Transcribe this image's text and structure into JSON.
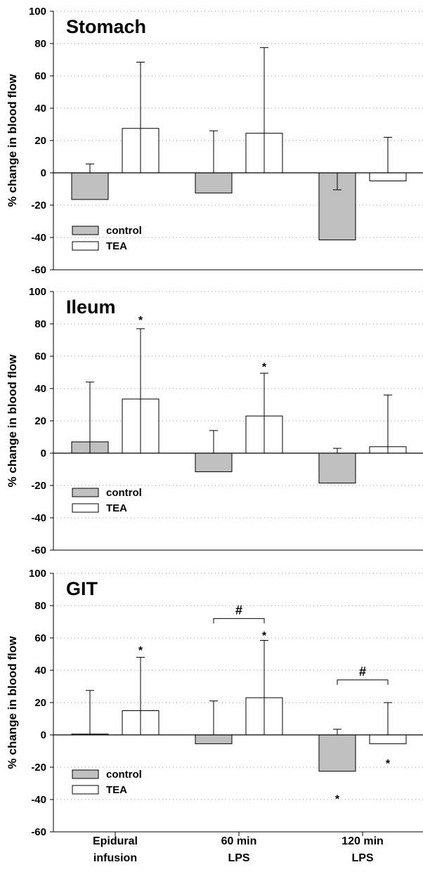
{
  "chart_data": [
    {
      "type": "bar",
      "title": "Stomach",
      "ylabel": "% change in blood flow",
      "ylim": [
        -60,
        100
      ],
      "yticks": [
        -60,
        -40,
        -20,
        0,
        20,
        40,
        60,
        80,
        100
      ],
      "categories": [
        "Epidural infusion",
        "60 min LPS",
        "120 min LPS"
      ],
      "series": [
        {
          "name": "control",
          "color": "#c0c0c0",
          "values": [
            -16.5,
            -12.5,
            -41.5
          ],
          "error": [
            22,
            38.5,
            31
          ]
        },
        {
          "name": "TEA",
          "color": "#ffffff",
          "values": [
            27.5,
            24.5,
            -5
          ],
          "error": [
            41,
            53,
            27
          ]
        }
      ],
      "significance": [],
      "brackets": []
    },
    {
      "type": "bar",
      "title": "Ileum",
      "ylabel": "% change in blood flow",
      "ylim": [
        -60,
        100
      ],
      "yticks": [
        -60,
        -40,
        -20,
        0,
        20,
        40,
        60,
        80,
        100
      ],
      "categories": [
        "Epidural infusion",
        "60 min LPS",
        "120 min LPS"
      ],
      "series": [
        {
          "name": "control",
          "color": "#c0c0c0",
          "values": [
            7,
            -11.5,
            -18.5
          ],
          "error": [
            37,
            25.5,
            21.5
          ]
        },
        {
          "name": "TEA",
          "color": "#ffffff",
          "values": [
            33.5,
            23,
            4
          ],
          "error": [
            43.5,
            26.5,
            32
          ]
        }
      ],
      "significance": [
        {
          "label": "*",
          "series": 1,
          "category": 0,
          "y": 84
        },
        {
          "label": "*",
          "series": 1,
          "category": 1,
          "y": 55
        }
      ],
      "brackets": []
    },
    {
      "type": "bar",
      "title": "GIT",
      "ylabel": "% change in blood flow",
      "ylim": [
        -60,
        100
      ],
      "yticks": [
        -60,
        -40,
        -20,
        0,
        20,
        40,
        60,
        80,
        100
      ],
      "categories": [
        "Epidural infusion",
        "60 min LPS",
        "120 min LPS"
      ],
      "series": [
        {
          "name": "control",
          "color": "#c0c0c0",
          "values": [
            0.5,
            -5.5,
            -22.5
          ],
          "error": [
            27,
            26.5,
            26
          ]
        },
        {
          "name": "TEA",
          "color": "#ffffff",
          "values": [
            15,
            23,
            -5.5
          ],
          "error": [
            33,
            35.5,
            25.5
          ]
        }
      ],
      "significance": [
        {
          "label": "*",
          "series": 1,
          "category": 0,
          "y": 54
        },
        {
          "label": "*",
          "series": 1,
          "category": 1,
          "y": 63
        },
        {
          "label": "*",
          "series": 1,
          "category": 2,
          "y": -16
        },
        {
          "label": "*",
          "series": 0,
          "category": 2,
          "y": -38
        }
      ],
      "brackets": [
        {
          "label": "#",
          "category": 1,
          "y": 72
        },
        {
          "label": "#",
          "category": 2,
          "y": 34
        }
      ]
    }
  ],
  "x_axis": {
    "categories": [
      {
        "line1": "Epidural",
        "line2": "infusion"
      },
      {
        "line1": "60 min",
        "line2": "LPS"
      },
      {
        "line1": "120 min",
        "line2": "LPS"
      }
    ]
  },
  "legend": {
    "position": "bottom-left",
    "items": [
      {
        "label": "control",
        "color": "#c0c0c0"
      },
      {
        "label": "TEA",
        "color": "#ffffff"
      }
    ]
  }
}
